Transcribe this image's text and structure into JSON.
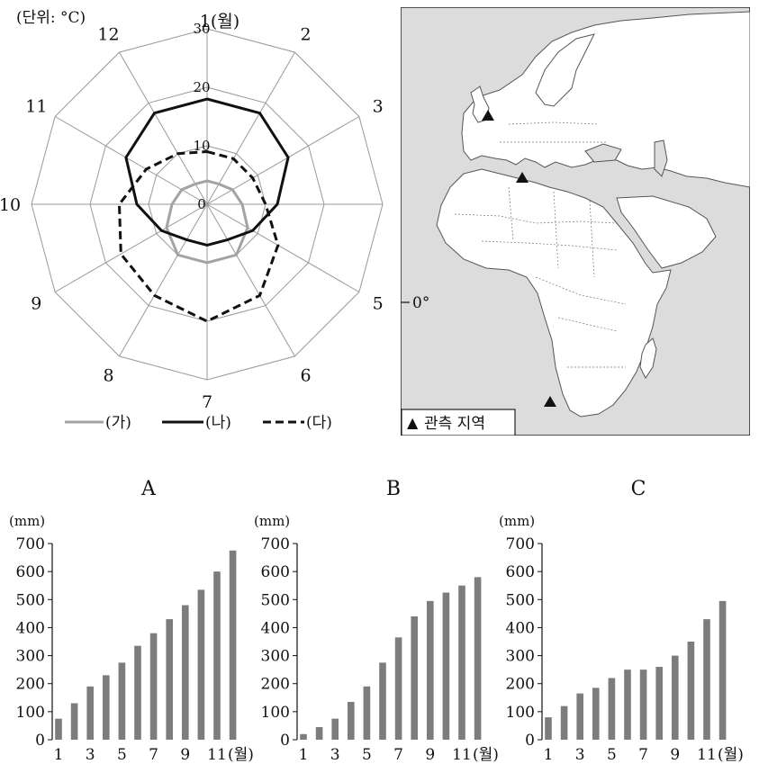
{
  "radar": {
    "unit_label": "(단위: °C)",
    "month_labels": [
      "1(월)",
      "2",
      "3",
      "4",
      "5",
      "6",
      "7",
      "8",
      "9",
      "10",
      "11",
      "12"
    ],
    "ticks": [
      "0",
      "10",
      "20",
      "30"
    ],
    "legend": [
      {
        "label": "(가)",
        "style": "gray"
      },
      {
        "label": "(나)",
        "style": "solid"
      },
      {
        "label": "(다)",
        "style": "dashed"
      }
    ]
  },
  "map": {
    "zero_label": "0°",
    "legend_marker": "▲",
    "legend_label": "관측 지역"
  },
  "bar_panels": {
    "unit": "(mm)",
    "x_suffix": "(월)",
    "y_ticks": [
      "700",
      "600",
      "500",
      "400",
      "300",
      "200",
      "100",
      "0"
    ],
    "x_ticks": [
      "1",
      "3",
      "5",
      "7",
      "9",
      "11"
    ]
  },
  "chart_data": [
    {
      "type": "radar",
      "categories": [
        "1",
        "2",
        "3",
        "4",
        "5",
        "6",
        "7",
        "8",
        "9",
        "10",
        "11",
        "12"
      ],
      "ylim": [
        0,
        30
      ],
      "series": [
        {
          "name": "(가)",
          "color": "#a3a3a3",
          "values": [
            4,
            4,
            5,
            6,
            8,
            10,
            10,
            10,
            8,
            6,
            5,
            4
          ]
        },
        {
          "name": "(나)",
          "color": "#111111",
          "values": [
            18,
            18,
            16,
            12,
            9,
            7,
            7,
            7,
            9,
            12,
            16,
            18
          ]
        },
        {
          "name": "(다)",
          "color": "#111111",
          "values": [
            9,
            9,
            9,
            10,
            14,
            18,
            20,
            18,
            17,
            15,
            12,
            10
          ]
        }
      ]
    },
    {
      "type": "bar",
      "title": "A",
      "ylabel": "(mm)",
      "ylim": [
        0,
        700
      ],
      "categories": [
        "1",
        "2",
        "3",
        "4",
        "5",
        "6",
        "7",
        "8",
        "9",
        "10",
        "11",
        "12"
      ],
      "values": [
        75,
        130,
        190,
        230,
        275,
        335,
        380,
        430,
        480,
        535,
        600,
        675
      ]
    },
    {
      "type": "bar",
      "title": "B",
      "ylabel": "(mm)",
      "ylim": [
        0,
        700
      ],
      "categories": [
        "1",
        "2",
        "3",
        "4",
        "5",
        "6",
        "7",
        "8",
        "9",
        "10",
        "11",
        "12"
      ],
      "values": [
        20,
        45,
        75,
        135,
        190,
        275,
        365,
        440,
        495,
        525,
        550,
        580
      ]
    },
    {
      "type": "bar",
      "title": "C",
      "ylabel": "(mm)",
      "ylim": [
        0,
        700
      ],
      "categories": [
        "1",
        "2",
        "3",
        "4",
        "5",
        "6",
        "7",
        "8",
        "9",
        "10",
        "11",
        "12"
      ],
      "values": [
        80,
        120,
        165,
        185,
        220,
        250,
        250,
        260,
        300,
        350,
        430,
        495
      ]
    }
  ]
}
